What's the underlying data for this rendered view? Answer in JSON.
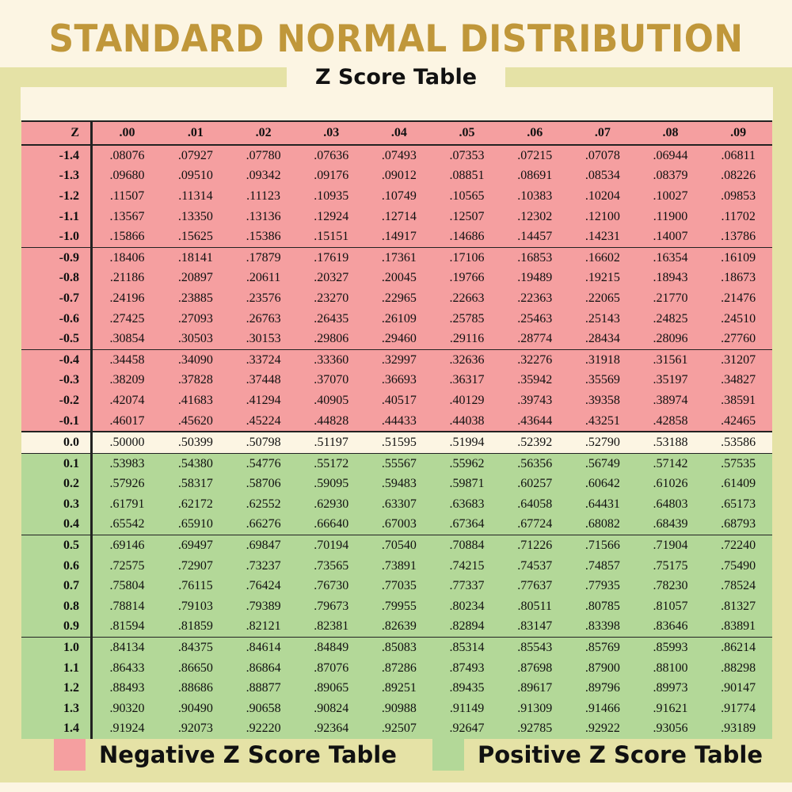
{
  "title": "STANDARD NORMAL DISTRIBUTION",
  "subtitle": "Z Score Table",
  "colors": {
    "negative": "#f59fa0",
    "positive": "#b3d898",
    "zero_row": "#fcf5e3",
    "title": "#c0973a",
    "band": "#e5e2a6"
  },
  "table": {
    "header": [
      "Z",
      ".00",
      ".01",
      ".02",
      ".03",
      ".04",
      ".05",
      ".06",
      ".07",
      ".08",
      ".09"
    ],
    "rows": [
      {
        "z": "-1.4",
        "v": [
          ".08076",
          ".07927",
          ".07780",
          ".07636",
          ".07493",
          ".07353",
          ".07215",
          ".07078",
          ".06944",
          ".06811"
        ]
      },
      {
        "z": "-1.3",
        "v": [
          ".09680",
          ".09510",
          ".09342",
          ".09176",
          ".09012",
          ".08851",
          ".08691",
          ".08534",
          ".08379",
          ".08226"
        ]
      },
      {
        "z": "-1.2",
        "v": [
          ".11507",
          ".11314",
          ".11123",
          ".10935",
          ".10749",
          ".10565",
          ".10383",
          ".10204",
          ".10027",
          ".09853"
        ]
      },
      {
        "z": "-1.1",
        "v": [
          ".13567",
          ".13350",
          ".13136",
          ".12924",
          ".12714",
          ".12507",
          ".12302",
          ".12100",
          ".11900",
          ".11702"
        ]
      },
      {
        "z": "-1.0",
        "v": [
          ".15866",
          ".15625",
          ".15386",
          ".15151",
          ".14917",
          ".14686",
          ".14457",
          ".14231",
          ".14007",
          ".13786"
        ]
      },
      {
        "z": "-0.9",
        "v": [
          ".18406",
          ".18141",
          ".17879",
          ".17619",
          ".17361",
          ".17106",
          ".16853",
          ".16602",
          ".16354",
          ".16109"
        ]
      },
      {
        "z": "-0.8",
        "v": [
          ".21186",
          ".20897",
          ".20611",
          ".20327",
          ".20045",
          ".19766",
          ".19489",
          ".19215",
          ".18943",
          ".18673"
        ]
      },
      {
        "z": "-0.7",
        "v": [
          ".24196",
          ".23885",
          ".23576",
          ".23270",
          ".22965",
          ".22663",
          ".22363",
          ".22065",
          ".21770",
          ".21476"
        ]
      },
      {
        "z": "-0.6",
        "v": [
          ".27425",
          ".27093",
          ".26763",
          ".26435",
          ".26109",
          ".25785",
          ".25463",
          ".25143",
          ".24825",
          ".24510"
        ]
      },
      {
        "z": "-0.5",
        "v": [
          ".30854",
          ".30503",
          ".30153",
          ".29806",
          ".29460",
          ".29116",
          ".28774",
          ".28434",
          ".28096",
          ".27760"
        ]
      },
      {
        "z": "-0.4",
        "v": [
          ".34458",
          ".34090",
          ".33724",
          ".33360",
          ".32997",
          ".32636",
          ".32276",
          ".31918",
          ".31561",
          ".31207"
        ]
      },
      {
        "z": "-0.3",
        "v": [
          ".38209",
          ".37828",
          ".37448",
          ".37070",
          ".36693",
          ".36317",
          ".35942",
          ".35569",
          ".35197",
          ".34827"
        ]
      },
      {
        "z": "-0.2",
        "v": [
          ".42074",
          ".41683",
          ".41294",
          ".40905",
          ".40517",
          ".40129",
          ".39743",
          ".39358",
          ".38974",
          ".38591"
        ]
      },
      {
        "z": "-0.1",
        "v": [
          ".46017",
          ".45620",
          ".45224",
          ".44828",
          ".44433",
          ".44038",
          ".43644",
          ".43251",
          ".42858",
          ".42465"
        ]
      },
      {
        "z": "0.0",
        "v": [
          ".50000",
          ".50399",
          ".50798",
          ".51197",
          ".51595",
          ".51994",
          ".52392",
          ".52790",
          ".53188",
          ".53586"
        ]
      },
      {
        "z": "0.1",
        "v": [
          ".53983",
          ".54380",
          ".54776",
          ".55172",
          ".55567",
          ".55962",
          ".56356",
          ".56749",
          ".57142",
          ".57535"
        ]
      },
      {
        "z": "0.2",
        "v": [
          ".57926",
          ".58317",
          ".58706",
          ".59095",
          ".59483",
          ".59871",
          ".60257",
          ".60642",
          ".61026",
          ".61409"
        ]
      },
      {
        "z": "0.3",
        "v": [
          ".61791",
          ".62172",
          ".62552",
          ".62930",
          ".63307",
          ".63683",
          ".64058",
          ".64431",
          ".64803",
          ".65173"
        ]
      },
      {
        "z": "0.4",
        "v": [
          ".65542",
          ".65910",
          ".66276",
          ".66640",
          ".67003",
          ".67364",
          ".67724",
          ".68082",
          ".68439",
          ".68793"
        ]
      },
      {
        "z": "0.5",
        "v": [
          ".69146",
          ".69497",
          ".69847",
          ".70194",
          ".70540",
          ".70884",
          ".71226",
          ".71566",
          ".71904",
          ".72240"
        ]
      },
      {
        "z": "0.6",
        "v": [
          ".72575",
          ".72907",
          ".73237",
          ".73565",
          ".73891",
          ".74215",
          ".74537",
          ".74857",
          ".75175",
          ".75490"
        ]
      },
      {
        "z": "0.7",
        "v": [
          ".75804",
          ".76115",
          ".76424",
          ".76730",
          ".77035",
          ".77337",
          ".77637",
          ".77935",
          ".78230",
          ".78524"
        ]
      },
      {
        "z": "0.8",
        "v": [
          ".78814",
          ".79103",
          ".79389",
          ".79673",
          ".79955",
          ".80234",
          ".80511",
          ".80785",
          ".81057",
          ".81327"
        ]
      },
      {
        "z": "0.9",
        "v": [
          ".81594",
          ".81859",
          ".82121",
          ".82381",
          ".82639",
          ".82894",
          ".83147",
          ".83398",
          ".83646",
          ".83891"
        ]
      },
      {
        "z": "1.0",
        "v": [
          ".84134",
          ".84375",
          ".84614",
          ".84849",
          ".85083",
          ".85314",
          ".85543",
          ".85769",
          ".85993",
          ".86214"
        ]
      },
      {
        "z": "1.1",
        "v": [
          ".86433",
          ".86650",
          ".86864",
          ".87076",
          ".87286",
          ".87493",
          ".87698",
          ".87900",
          ".88100",
          ".88298"
        ]
      },
      {
        "z": "1.2",
        "v": [
          ".88493",
          ".88686",
          ".88877",
          ".89065",
          ".89251",
          ".89435",
          ".89617",
          ".89796",
          ".89973",
          ".90147"
        ]
      },
      {
        "z": "1.3",
        "v": [
          ".90320",
          ".90490",
          ".90658",
          ".90824",
          ".90988",
          ".91149",
          ".91309",
          ".91466",
          ".91621",
          ".91774"
        ]
      },
      {
        "z": "1.4",
        "v": [
          ".91924",
          ".92073",
          ".92220",
          ".92364",
          ".92507",
          ".92647",
          ".92785",
          ".92922",
          ".93056",
          ".93189"
        ]
      }
    ]
  },
  "legend": {
    "negative": "Negative Z Score Table",
    "positive": "Positive Z Score Table"
  }
}
